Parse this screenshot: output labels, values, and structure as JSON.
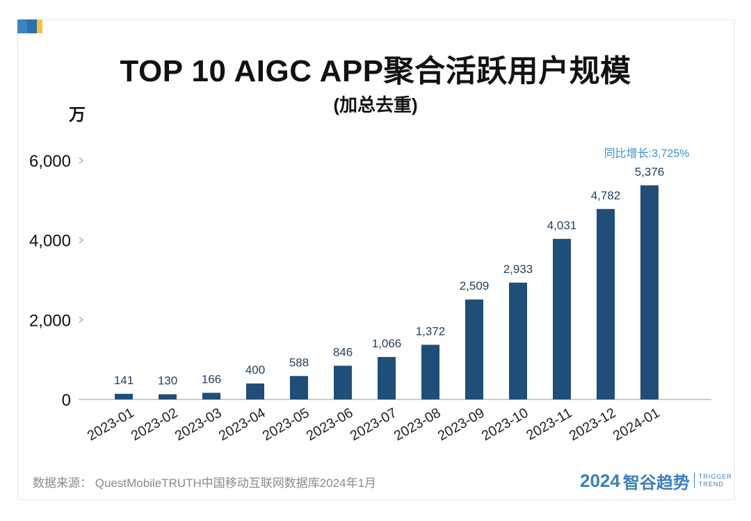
{
  "title": "TOP 10 AIGC APP聚合活跃用户规模",
  "subtitle": "(加总去重)",
  "unit": "万",
  "source": "数据来源： QuestMobileTRUTH中国移动互联网数据库2024年1月",
  "brand": {
    "year": "2024",
    "name": "智谷趋势",
    "en_line1": "TRIGGER",
    "en_line2": "TREND"
  },
  "colors": {
    "bar": "#1f4e79",
    "label": "#1f3d5c",
    "annotation": "#3a8fd0",
    "axis": "#999999",
    "brand": "#3a7fc0"
  },
  "chart_data": {
    "type": "bar",
    "categories": [
      "2023-01",
      "2023-02",
      "2023-03",
      "2023-04",
      "2023-05",
      "2023-06",
      "2023-07",
      "2023-08",
      "2023-09",
      "2023-10",
      "2023-11",
      "2023-12",
      "2024-01"
    ],
    "values": [
      141,
      130,
      166,
      400,
      588,
      846,
      1066,
      1372,
      2509,
      2933,
      4031,
      4782,
      5376
    ],
    "value_labels": [
      "141",
      "130",
      "166",
      "400",
      "588",
      "846",
      "1,066",
      "1,372",
      "2,509",
      "2,933",
      "4,031",
      "4,782",
      "5,376"
    ],
    "yticks": [
      0,
      2000,
      4000,
      6000
    ],
    "ytick_labels": [
      "0",
      "2,000",
      "4,000",
      "6,000"
    ],
    "ylim": [
      0,
      6000
    ],
    "ylabel": "万",
    "annotation": "同比增长:3,725%",
    "grid": false,
    "legend": false
  }
}
